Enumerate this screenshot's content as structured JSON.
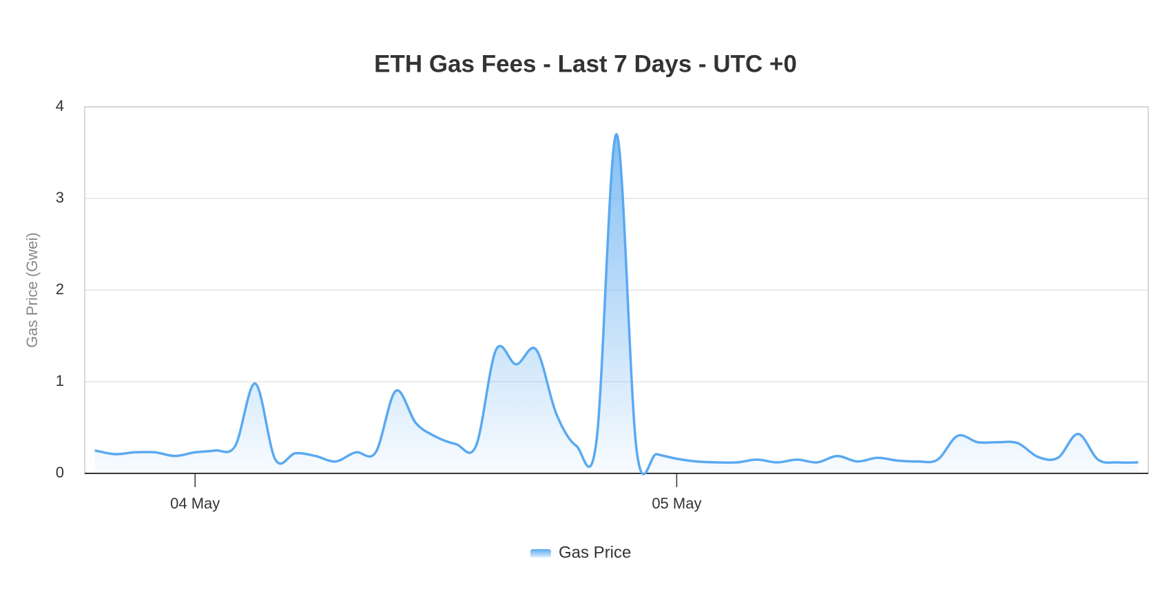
{
  "chart_data": {
    "type": "area",
    "title": "ETH Gas Fees - Last 7 Days - UTC +0",
    "y_label": "Gas Price (Gwei)",
    "categories": [
      null,
      null,
      null,
      null,
      null,
      "04 May",
      null,
      null,
      null,
      null,
      null,
      null,
      null,
      null,
      null,
      null,
      null,
      null,
      null,
      null,
      null,
      null,
      null,
      null,
      null,
      null,
      null,
      null,
      null,
      "05 May",
      null,
      null,
      null,
      null,
      null,
      null,
      null,
      null,
      null,
      null,
      null,
      null,
      null,
      null,
      null,
      null,
      null,
      null,
      null,
      null,
      null,
      null,
      null
    ],
    "series": [
      {
        "name": "Gas Price",
        "color": "#5aa9f0",
        "values": [
          0.25,
          0.21,
          0.23,
          0.23,
          0.19,
          0.23,
          0.25,
          0.3,
          0.98,
          0.15,
          0.22,
          0.19,
          0.13,
          0.23,
          0.23,
          0.9,
          0.55,
          0.4,
          0.32,
          0.3,
          1.35,
          1.19,
          1.35,
          0.65,
          0.3,
          0.35,
          3.7,
          0.26,
          0.21,
          0.16,
          0.13,
          0.12,
          0.12,
          0.15,
          0.12,
          0.15,
          0.12,
          0.19,
          0.13,
          0.17,
          0.14,
          0.13,
          0.15,
          0.41,
          0.34,
          0.34,
          0.33,
          0.18,
          0.17,
          0.43,
          0.15,
          0.12,
          0.12
        ]
      }
    ],
    "ylim": [
      0,
      4
    ],
    "yticks": [
      0,
      1,
      2,
      3,
      4
    ],
    "grid": true,
    "legend": "bottom"
  }
}
